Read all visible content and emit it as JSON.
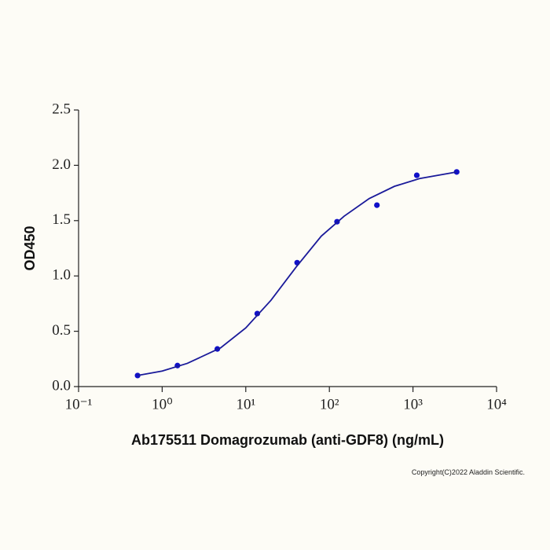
{
  "chart_data": {
    "type": "scatter",
    "x_label": "Ab175511 Domagrozumab (anti-GDF8) (ng/mL)",
    "y_label": "OD450",
    "annotation": "Copyright(C)2022 Aladdin Scientific.",
    "x_scale": "log",
    "xlim": [
      0.1,
      10000
    ],
    "xticks": [
      {
        "value": 0.1,
        "label": "10⁻¹"
      },
      {
        "value": 1,
        "label": "10⁰"
      },
      {
        "value": 10,
        "label": "10¹"
      },
      {
        "value": 100,
        "label": "10²"
      },
      {
        "value": 1000,
        "label": "10³"
      },
      {
        "value": 10000,
        "label": "10⁴"
      }
    ],
    "ylim": [
      0,
      2.5
    ],
    "yticks": [
      {
        "value": 0,
        "label": "0.0"
      },
      0.5,
      {
        "value": 1,
        "label": "1.0"
      },
      1.5,
      {
        "value": 2,
        "label": "2.0"
      },
      2.5
    ],
    "series": [
      {
        "kind": "points",
        "color": "#1010c8",
        "x": [
          0.508,
          1.524,
          4.572,
          13.72,
          41.15,
          123.5,
          370.4,
          1111,
          3333
        ],
        "values": [
          0.1,
          0.19,
          0.34,
          0.66,
          1.12,
          1.49,
          1.64,
          1.91,
          1.94
        ]
      },
      {
        "kind": "curve",
        "color": "#1a1a9a",
        "x": [
          0.508,
          1,
          2,
          5,
          10,
          20,
          40,
          80,
          150,
          300,
          600,
          1200,
          3333
        ],
        "values": [
          0.1,
          0.14,
          0.21,
          0.35,
          0.53,
          0.78,
          1.08,
          1.36,
          1.54,
          1.7,
          1.81,
          1.88,
          1.94
        ]
      }
    ]
  }
}
